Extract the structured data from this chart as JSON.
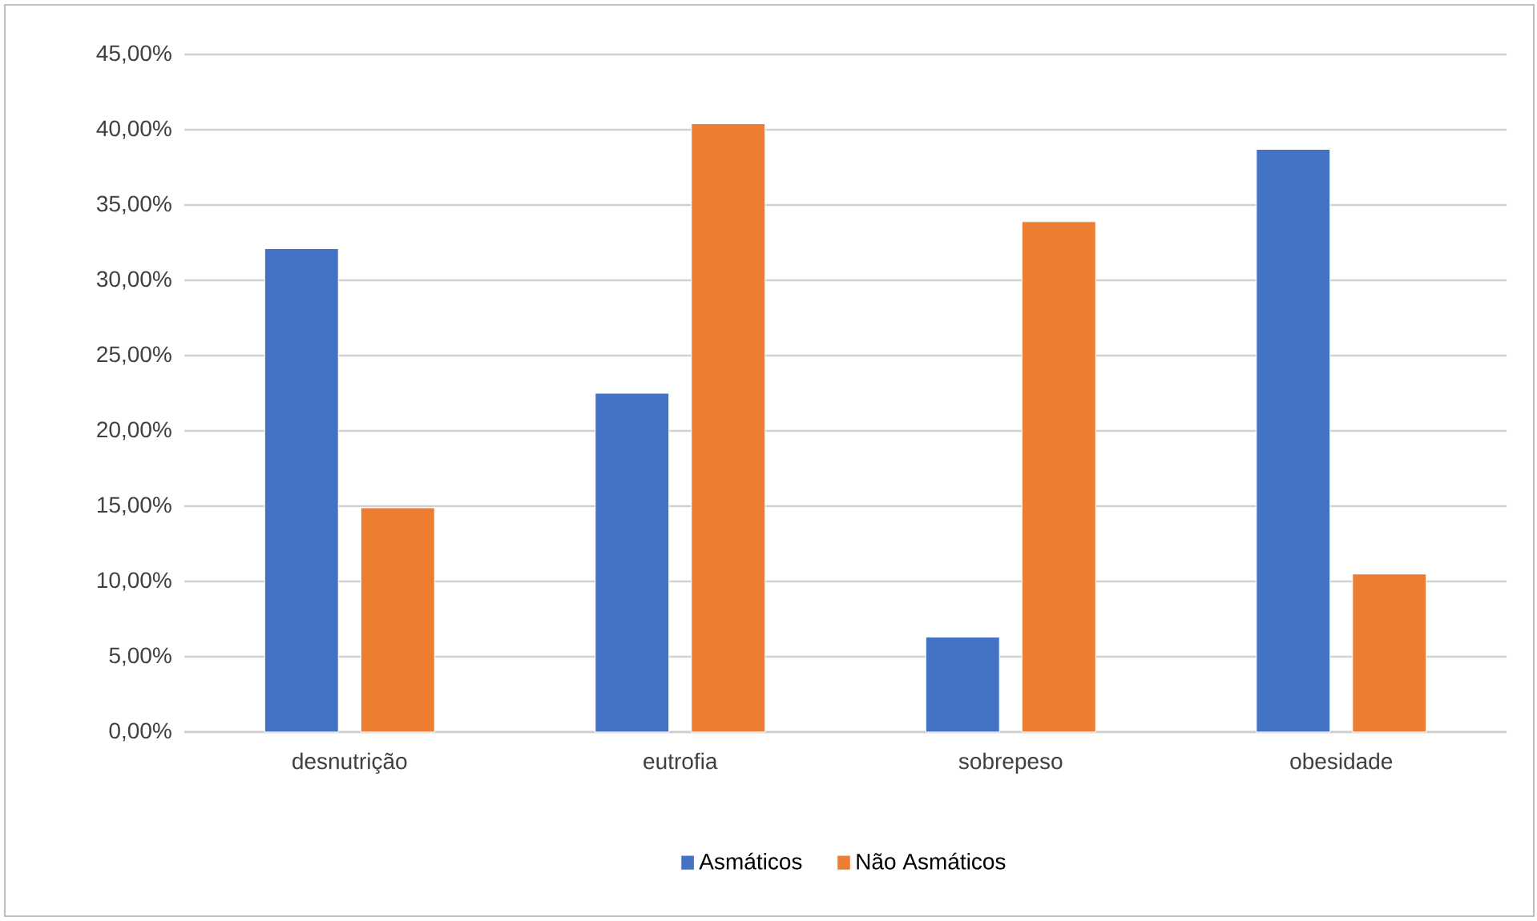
{
  "chart_data": {
    "type": "bar",
    "categories": [
      "desnutrição",
      "eutrofia",
      "sobrepeso",
      "obesidade"
    ],
    "series": [
      {
        "name": "Asmáticos",
        "color": "#4472c4",
        "values": [
          32.1,
          22.5,
          6.3,
          38.7
        ]
      },
      {
        "name": "Não Asmáticos",
        "color": "#ed7d31",
        "values": [
          14.9,
          40.4,
          33.9,
          10.5
        ]
      }
    ],
    "ylim": [
      0,
      45
    ],
    "yticks": [
      {
        "value": 0,
        "label": "0,00%"
      },
      {
        "value": 5,
        "label": "5,00%"
      },
      {
        "value": 10,
        "label": "10,00%"
      },
      {
        "value": 15,
        "label": "15,00%"
      },
      {
        "value": 20,
        "label": "20,00%"
      },
      {
        "value": 25,
        "label": "25,00%"
      },
      {
        "value": 30,
        "label": "30,00%"
      },
      {
        "value": 35,
        "label": "35,00%"
      },
      {
        "value": 40,
        "label": "40,00%"
      },
      {
        "value": 45,
        "label": "45,00%"
      }
    ],
    "grid": "y",
    "legend": "bottom"
  }
}
